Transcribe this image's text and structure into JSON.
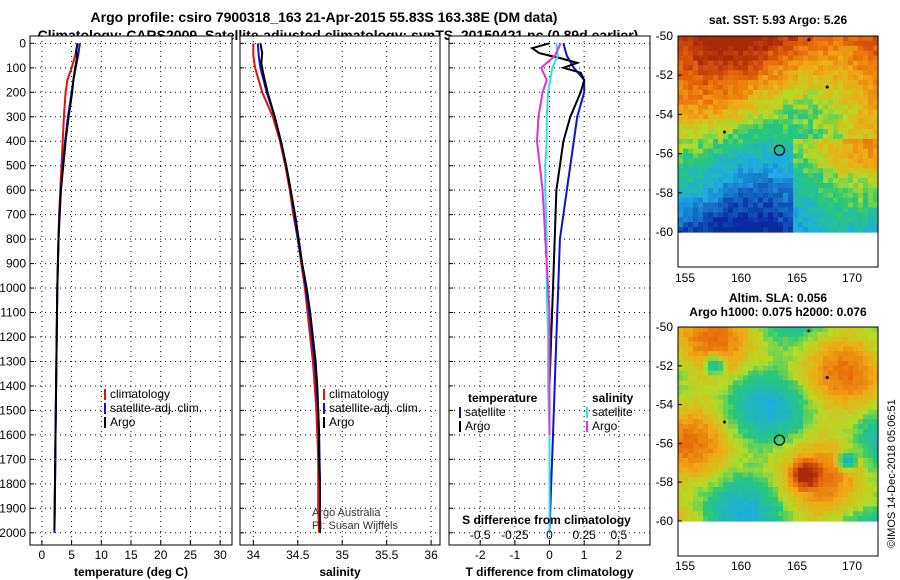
{
  "header": {
    "line1": "Argo profile: csiro 7900318_163 21-Apr-2015 55.83S 163.38E (DM data)",
    "line2": "Climatology: CARS2009. Satellite-adjusted climatology: synTS_20150421.nc (0.89d earlier)"
  },
  "colors": {
    "climatology": "#e01010",
    "satellite": "#1010d0",
    "argo": "#000000",
    "sat_salinity": "#30e0e0",
    "argo_salinity": "#e030e0"
  },
  "depth_axis": {
    "ticks": [
      "0",
      "100",
      "200",
      "300",
      "400",
      "500",
      "600",
      "700",
      "800",
      "900",
      "1000",
      "1100",
      "1200",
      "1300",
      "1400",
      "1500",
      "1600",
      "1700",
      "1800",
      "1900",
      "2000"
    ]
  },
  "chart_data": [
    {
      "type": "line",
      "id": "temperature",
      "xlabel": "temperature (deg C)",
      "xticks": [
        "0",
        "5",
        "10",
        "15",
        "20",
        "25",
        "30"
      ],
      "xlim": [
        -2,
        32
      ],
      "ylim": [
        2050,
        -30
      ],
      "legend": [
        "climatology",
        "satellite-adj. clim.",
        "Argo"
      ],
      "series": [
        {
          "name": "climatology",
          "color": "climatology",
          "depth": [
            0,
            50,
            100,
            150,
            200,
            300,
            400,
            500,
            600,
            700,
            800,
            1000,
            1200,
            1400,
            1600,
            1700,
            1800,
            1900,
            2000
          ],
          "values": [
            6.0,
            5.6,
            5.0,
            4.3,
            4.0,
            3.7,
            3.5,
            3.3,
            3.1,
            2.9,
            2.8,
            2.6,
            2.5,
            2.4,
            2.3,
            2.25,
            2.2,
            2.15,
            2.1
          ]
        },
        {
          "name": "satellite",
          "color": "satellite",
          "depth": [
            0,
            50,
            100,
            150,
            200,
            300,
            400,
            500,
            600,
            700,
            800,
            1000,
            1200,
            1400,
            1600,
            1800,
            2000
          ],
          "values": [
            6.4,
            6.1,
            5.7,
            5.3,
            5.0,
            4.4,
            3.9,
            3.5,
            3.2,
            2.95,
            2.8,
            2.6,
            2.5,
            2.4,
            2.3,
            2.2,
            2.1
          ]
        },
        {
          "name": "Argo",
          "color": "argo",
          "depth": [
            0,
            30,
            60,
            100,
            150,
            200,
            300,
            400,
            500,
            600,
            700,
            800,
            1000,
            1200,
            1400,
            1600,
            1800,
            1990
          ],
          "values": [
            6.0,
            5.8,
            5.9,
            5.6,
            5.3,
            5.1,
            4.5,
            4.0,
            3.6,
            3.2,
            3.0,
            2.8,
            2.6,
            2.5,
            2.4,
            2.3,
            2.2,
            2.1
          ]
        }
      ]
    },
    {
      "type": "line",
      "id": "salinity",
      "xlabel": "salinity",
      "xticks": [
        "34",
        "34.5",
        "35",
        "35.5",
        "36"
      ],
      "xlim": [
        33.85,
        36.1
      ],
      "ylim": [
        2050,
        -30
      ],
      "legend": [
        "climatology",
        "satellite-adj. clim.",
        "Argo"
      ],
      "annotation": [
        "Argo Australia",
        "PI: Susan Wijffels"
      ],
      "series": [
        {
          "name": "climatology",
          "color": "climatology",
          "depth": [
            0,
            50,
            100,
            200,
            300,
            400,
            500,
            600,
            700,
            800,
            900,
            1000,
            1100,
            1200,
            1300,
            1400,
            1500,
            1600,
            1700,
            1800,
            1900,
            2000
          ],
          "values": [
            34.0,
            34.0,
            34.02,
            34.1,
            34.22,
            34.3,
            34.36,
            34.41,
            34.45,
            34.5,
            34.54,
            34.58,
            34.61,
            34.64,
            34.67,
            34.69,
            34.71,
            34.72,
            34.73,
            34.73,
            34.73,
            34.74
          ]
        },
        {
          "name": "satellite",
          "color": "satellite",
          "depth": [
            0,
            50,
            100,
            200,
            300,
            400,
            500,
            600,
            700,
            800,
            900,
            1000,
            1100,
            1200,
            1300,
            1400,
            1500,
            1600,
            1800,
            2000
          ],
          "values": [
            34.05,
            34.06,
            34.08,
            34.15,
            34.24,
            34.31,
            34.37,
            34.42,
            34.46,
            34.5,
            34.55,
            34.59,
            34.63,
            34.66,
            34.69,
            34.71,
            34.73,
            34.74,
            34.75,
            34.75
          ]
        },
        {
          "name": "Argo",
          "color": "argo",
          "depth": [
            0,
            40,
            80,
            120,
            200,
            300,
            400,
            500,
            600,
            700,
            800,
            900,
            1000,
            1100,
            1200,
            1300,
            1400,
            1500,
            1600,
            1700,
            1800,
            1900,
            1995
          ],
          "values": [
            34.08,
            34.1,
            34.09,
            34.11,
            34.16,
            34.24,
            34.31,
            34.37,
            34.42,
            34.47,
            34.51,
            34.55,
            34.6,
            34.64,
            34.67,
            34.7,
            34.72,
            34.73,
            34.74,
            34.74,
            34.75,
            34.75,
            34.75
          ]
        }
      ]
    },
    {
      "type": "line",
      "id": "difference",
      "xlabel": "T difference from climatology",
      "xticks": [
        "-2",
        "-1",
        "0",
        "1",
        "2"
      ],
      "xlim": [
        -2.9,
        2.9
      ],
      "ylim": [
        2050,
        -30
      ],
      "top_label": "S difference from climatology",
      "top_ticks": [
        "-0.5",
        "-0.25",
        "0",
        "0.25",
        "0.5"
      ],
      "legend_left_title": "temperature",
      "legend_right_title": "salinity",
      "legend_left": [
        "satellite",
        "Argo"
      ],
      "legend_right": [
        "satellite",
        "Argo"
      ],
      "series": [
        {
          "name": "T satellite",
          "color": "satellite",
          "depth": [
            0,
            50,
            100,
            150,
            200,
            300,
            400,
            500,
            600,
            700,
            800,
            1000,
            1200,
            1400,
            1600,
            1800,
            2000
          ],
          "values": [
            0.4,
            0.5,
            0.7,
            1.0,
            1.0,
            0.8,
            0.7,
            0.6,
            0.5,
            0.4,
            0.3,
            0.25,
            0.2,
            0.15,
            0.1,
            0.05,
            0.0
          ]
        },
        {
          "name": "T Argo",
          "color": "argo",
          "depth": [
            0,
            20,
            40,
            60,
            80,
            100,
            120,
            150,
            200,
            300,
            400,
            500,
            600,
            800,
            1000,
            1200,
            1400,
            1600,
            1800,
            1990
          ],
          "values": [
            0.0,
            -0.5,
            -0.3,
            0.3,
            0.8,
            0.4,
            0.9,
            1.0,
            0.9,
            0.6,
            0.4,
            0.3,
            0.2,
            0.15,
            0.1,
            0.05,
            0.0,
            0.0,
            0.0,
            0.0
          ]
        },
        {
          "name": "S satellite",
          "color": "sat_salinity",
          "depth": [
            0,
            50,
            100,
            200,
            300,
            400,
            500,
            600,
            800,
            1000,
            1200,
            1400,
            1600,
            1800,
            2000
          ],
          "values": [
            0.05,
            0.06,
            0.02,
            -0.01,
            -0.02,
            -0.02,
            -0.03,
            -0.03,
            -0.02,
            -0.02,
            -0.01,
            -0.01,
            0.0,
            0.0,
            0.0
          ]
        },
        {
          "name": "S Argo",
          "color": "argo_salinity",
          "depth": [
            0,
            50,
            100,
            150,
            200,
            300,
            400,
            500,
            600,
            700,
            800,
            900,
            1000,
            1100,
            1200,
            1300,
            1400,
            1500,
            1600
          ],
          "values": [
            0.08,
            0.04,
            -0.06,
            -0.02,
            -0.05,
            -0.08,
            -0.09,
            -0.07,
            -0.05,
            -0.04,
            -0.03,
            -0.02,
            -0.01,
            0.0,
            0.0,
            0.0,
            0.0,
            0.0,
            0.0
          ]
        }
      ]
    }
  ],
  "maps": {
    "sst": {
      "title": "sat. SST: 5.93 Argo: 5.26",
      "yticks": [
        "-50",
        "-52",
        "-54",
        "-56",
        "-58",
        "-60"
      ],
      "xticks": [
        "155",
        "160",
        "165",
        "170"
      ],
      "float_lat": -55.83,
      "float_lon": 163.38
    },
    "sla": {
      "title1": "Altim. SLA: 0.056",
      "title2": "Argo h1000: 0.075 h2000: 0.076",
      "yticks": [
        "-50",
        "-52",
        "-54",
        "-56",
        "-58",
        "-60"
      ],
      "xticks": [
        "155",
        "160",
        "165",
        "170"
      ]
    }
  },
  "footer": {
    "credit": "©IMOS 14-Dec-2018 05:06:51"
  }
}
